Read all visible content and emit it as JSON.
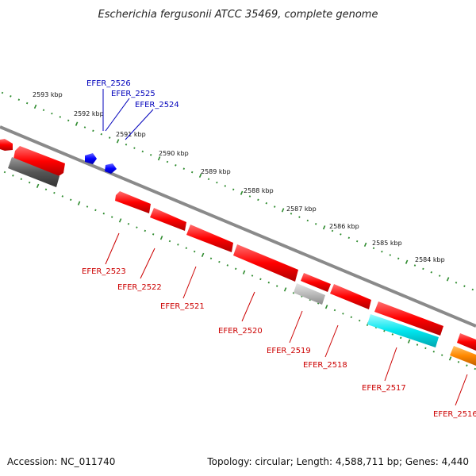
{
  "title": "Escherichia fergusonii ATCC 35469, complete genome",
  "footer": {
    "accession": "Accession: NC_011740",
    "summary": "Topology: circular; Length: 4,588,711 bp; Genes: 4,440"
  },
  "colors": {
    "backbone": "#8a8a8a",
    "scale": "#2e8b2e",
    "forward_label": "#0000bb",
    "reverse_label": "#cc0000",
    "gene_red": "#ff0000",
    "gene_blue": "#0000ff",
    "gene_dark_gray": "#555555",
    "gene_light_gray": "#bbbbbb",
    "gene_cyan": "#00e5ee",
    "gene_orange": "#ff8800"
  },
  "scale_labels": [
    "2593 kbp",
    "2592 kbp",
    "2591 kbp",
    "2590 kbp",
    "2589 kbp",
    "2588 kbp",
    "2587 kbp",
    "2586 kbp",
    "2585 kbp",
    "2584 kbp"
  ],
  "forward_genes": [
    {
      "label": "EFER_2526",
      "color": "blue"
    },
    {
      "label": "EFER_2525",
      "color": "blue"
    },
    {
      "label": "EFER_2524",
      "color": "blue"
    }
  ],
  "reverse_genes": [
    {
      "label": "EFER_2523",
      "color": "red"
    },
    {
      "label": "EFER_2522",
      "color": "red"
    },
    {
      "label": "EFER_2521",
      "color": "red"
    },
    {
      "label": "EFER_2520",
      "color": "red"
    },
    {
      "label": "EFER_2519",
      "color": "red"
    },
    {
      "label": "EFER_2518",
      "color": "red"
    },
    {
      "label": "EFER_2517",
      "color": "red"
    },
    {
      "label": "EFER_2516",
      "color": "red"
    }
  ]
}
